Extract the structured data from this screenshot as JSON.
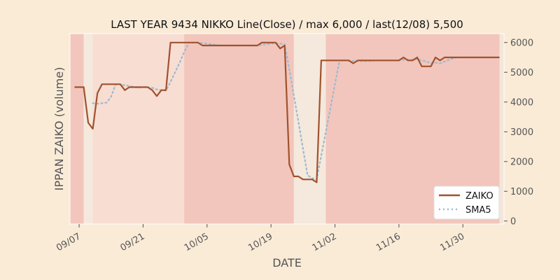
{
  "chart_data": {
    "type": "line",
    "title": "LAST YEAR 9434 NIKKO Line(Close) / max 6,000 / last(12/08) 5,500",
    "xlabel": "DATE",
    "ylabel": "IPPAN ZAIKO (volume)",
    "x_tick_labels": [
      "09/07",
      "09/21",
      "10/05",
      "10/19",
      "11/02",
      "11/16",
      "11/30"
    ],
    "x_tick_dates": [
      "09/07",
      "09/21",
      "10/05",
      "10/19",
      "11/02",
      "11/16",
      "11/30"
    ],
    "xlim": [
      "09/05",
      "12/09"
    ],
    "y_ticks": [
      0,
      1000,
      2000,
      3000,
      4000,
      5000,
      6000
    ],
    "ylim": [
      -100,
      6300
    ],
    "y_axis_side": "right",
    "grid": false,
    "legend_position": "lower-right",
    "colors": {
      "background": "#faebd7",
      "zaiko": "#a0522d",
      "sma5": "#9cbad0",
      "band_dark": "#f2c6bc",
      "band_light": "#f8ddd3",
      "band_faint": "#f5e8dc"
    },
    "background_bands": [
      {
        "from": "09/05",
        "to": "09/08",
        "shade": "dark"
      },
      {
        "from": "09/08",
        "to": "09/10",
        "shade": "faint"
      },
      {
        "from": "09/10",
        "to": "09/30",
        "shade": "light"
      },
      {
        "from": "09/30",
        "to": "10/24",
        "shade": "dark"
      },
      {
        "from": "10/24",
        "to": "10/31",
        "shade": "faint"
      },
      {
        "from": "10/31",
        "to": "12/08",
        "shade": "dark"
      }
    ],
    "series": [
      {
        "name": "ZAIKO",
        "style": "solid",
        "points": [
          [
            "09/06",
            4500
          ],
          [
            "09/07",
            4500
          ],
          [
            "09/08",
            4500
          ],
          [
            "09/09",
            3300
          ],
          [
            "09/10",
            3100
          ],
          [
            "09/11",
            4300
          ],
          [
            "09/12",
            4600
          ],
          [
            "09/13",
            4600
          ],
          [
            "09/14",
            4600
          ],
          [
            "09/15",
            4600
          ],
          [
            "09/16",
            4600
          ],
          [
            "09/17",
            4400
          ],
          [
            "09/18",
            4500
          ],
          [
            "09/19",
            4500
          ],
          [
            "09/20",
            4500
          ],
          [
            "09/21",
            4500
          ],
          [
            "09/22",
            4500
          ],
          [
            "09/23",
            4400
          ],
          [
            "09/24",
            4200
          ],
          [
            "09/25",
            4400
          ],
          [
            "09/26",
            4400
          ],
          [
            "09/27",
            6000
          ],
          [
            "09/28",
            6000
          ],
          [
            "09/29",
            6000
          ],
          [
            "09/30",
            6000
          ],
          [
            "10/01",
            6000
          ],
          [
            "10/02",
            6000
          ],
          [
            "10/03",
            6000
          ],
          [
            "10/04",
            5900
          ],
          [
            "10/05",
            5900
          ],
          [
            "10/06",
            5900
          ],
          [
            "10/07",
            5900
          ],
          [
            "10/08",
            5900
          ],
          [
            "10/09",
            5900
          ],
          [
            "10/10",
            5900
          ],
          [
            "10/11",
            5900
          ],
          [
            "10/12",
            5900
          ],
          [
            "10/13",
            5900
          ],
          [
            "10/14",
            5900
          ],
          [
            "10/15",
            5900
          ],
          [
            "10/16",
            5900
          ],
          [
            "10/17",
            6000
          ],
          [
            "10/18",
            6000
          ],
          [
            "10/19",
            6000
          ],
          [
            "10/20",
            6000
          ],
          [
            "10/21",
            5800
          ],
          [
            "10/22",
            5900
          ],
          [
            "10/23",
            1900
          ],
          [
            "10/24",
            1500
          ],
          [
            "10/25",
            1500
          ],
          [
            "10/26",
            1400
          ],
          [
            "10/27",
            1400
          ],
          [
            "10/28",
            1400
          ],
          [
            "10/29",
            1300
          ],
          [
            "10/30",
            5400
          ],
          [
            "10/31",
            5400
          ],
          [
            "11/01",
            5400
          ],
          [
            "11/02",
            5400
          ],
          [
            "11/03",
            5400
          ],
          [
            "11/04",
            5400
          ],
          [
            "11/05",
            5400
          ],
          [
            "11/06",
            5300
          ],
          [
            "11/07",
            5400
          ],
          [
            "11/08",
            5400
          ],
          [
            "11/09",
            5400
          ],
          [
            "11/10",
            5400
          ],
          [
            "11/11",
            5400
          ],
          [
            "11/12",
            5400
          ],
          [
            "11/13",
            5400
          ],
          [
            "11/14",
            5400
          ],
          [
            "11/15",
            5400
          ],
          [
            "11/16",
            5400
          ],
          [
            "11/17",
            5500
          ],
          [
            "11/18",
            5400
          ],
          [
            "11/19",
            5400
          ],
          [
            "11/20",
            5500
          ],
          [
            "11/21",
            5200
          ],
          [
            "11/22",
            5200
          ],
          [
            "11/23",
            5200
          ],
          [
            "11/24",
            5500
          ],
          [
            "11/25",
            5400
          ],
          [
            "11/26",
            5500
          ],
          [
            "11/27",
            5500
          ],
          [
            "11/28",
            5500
          ],
          [
            "11/29",
            5500
          ],
          [
            "11/30",
            5500
          ],
          [
            "12/01",
            5500
          ],
          [
            "12/02",
            5500
          ],
          [
            "12/03",
            5500
          ],
          [
            "12/04",
            5500
          ],
          [
            "12/05",
            5500
          ],
          [
            "12/06",
            5500
          ],
          [
            "12/07",
            5500
          ],
          [
            "12/08",
            5500
          ]
        ]
      },
      {
        "name": "SMA5",
        "style": "dotted",
        "points": [
          [
            "09/10",
            3960
          ],
          [
            "09/11",
            3940
          ],
          [
            "09/12",
            3960
          ],
          [
            "09/13",
            3980
          ],
          [
            "09/14",
            4180
          ],
          [
            "09/15",
            4600
          ],
          [
            "09/16",
            4600
          ],
          [
            "09/17",
            4560
          ],
          [
            "09/18",
            4540
          ],
          [
            "09/19",
            4500
          ],
          [
            "09/20",
            4480
          ],
          [
            "09/21",
            4500
          ],
          [
            "09/22",
            4500
          ],
          [
            "09/23",
            4480
          ],
          [
            "09/24",
            4420
          ],
          [
            "09/25",
            4400
          ],
          [
            "09/26",
            4380
          ],
          [
            "09/27",
            4680
          ],
          [
            "09/28",
            5000
          ],
          [
            "09/29",
            5320
          ],
          [
            "09/30",
            5680
          ],
          [
            "10/01",
            6000
          ],
          [
            "10/02",
            6000
          ],
          [
            "10/03",
            6000
          ],
          [
            "10/04",
            5980
          ],
          [
            "10/05",
            5960
          ],
          [
            "10/06",
            5940
          ],
          [
            "10/07",
            5920
          ],
          [
            "10/08",
            5900
          ],
          [
            "10/09",
            5900
          ],
          [
            "10/10",
            5900
          ],
          [
            "10/11",
            5900
          ],
          [
            "10/12",
            5900
          ],
          [
            "10/13",
            5900
          ],
          [
            "10/14",
            5900
          ],
          [
            "10/15",
            5900
          ],
          [
            "10/16",
            5900
          ],
          [
            "10/17",
            5920
          ],
          [
            "10/18",
            5940
          ],
          [
            "10/19",
            5960
          ],
          [
            "10/20",
            5980
          ],
          [
            "10/21",
            5960
          ],
          [
            "10/22",
            5940
          ],
          [
            "10/23",
            5100
          ],
          [
            "10/24",
            4220
          ],
          [
            "10/25",
            3340
          ],
          [
            "10/26",
            2440
          ],
          [
            "10/27",
            1540
          ],
          [
            "10/28",
            1440
          ],
          [
            "10/29",
            1400
          ],
          [
            "10/30",
            2200
          ],
          [
            "10/31",
            3000
          ],
          [
            "11/01",
            3800
          ],
          [
            "11/02",
            4600
          ],
          [
            "11/03",
            5400
          ],
          [
            "11/04",
            5400
          ],
          [
            "11/05",
            5400
          ],
          [
            "11/06",
            5380
          ],
          [
            "11/07",
            5380
          ],
          [
            "11/08",
            5380
          ],
          [
            "11/09",
            5380
          ],
          [
            "11/10",
            5380
          ],
          [
            "11/11",
            5400
          ],
          [
            "11/12",
            5400
          ],
          [
            "11/13",
            5400
          ],
          [
            "11/14",
            5400
          ],
          [
            "11/15",
            5400
          ],
          [
            "11/16",
            5400
          ],
          [
            "11/17",
            5420
          ],
          [
            "11/18",
            5420
          ],
          [
            "11/19",
            5420
          ],
          [
            "11/20",
            5440
          ],
          [
            "11/21",
            5400
          ],
          [
            "11/22",
            5360
          ],
          [
            "11/23",
            5300
          ],
          [
            "11/24",
            5320
          ],
          [
            "11/25",
            5300
          ],
          [
            "11/26",
            5360
          ],
          [
            "11/27",
            5420
          ],
          [
            "11/28",
            5480
          ],
          [
            "11/29",
            5500
          ],
          [
            "11/30",
            5500
          ],
          [
            "12/01",
            5500
          ],
          [
            "12/02",
            5500
          ],
          [
            "12/03",
            5500
          ],
          [
            "12/04",
            5500
          ],
          [
            "12/05",
            5500
          ],
          [
            "12/06",
            5500
          ],
          [
            "12/07",
            5500
          ],
          [
            "12/08",
            5500
          ]
        ]
      }
    ]
  }
}
